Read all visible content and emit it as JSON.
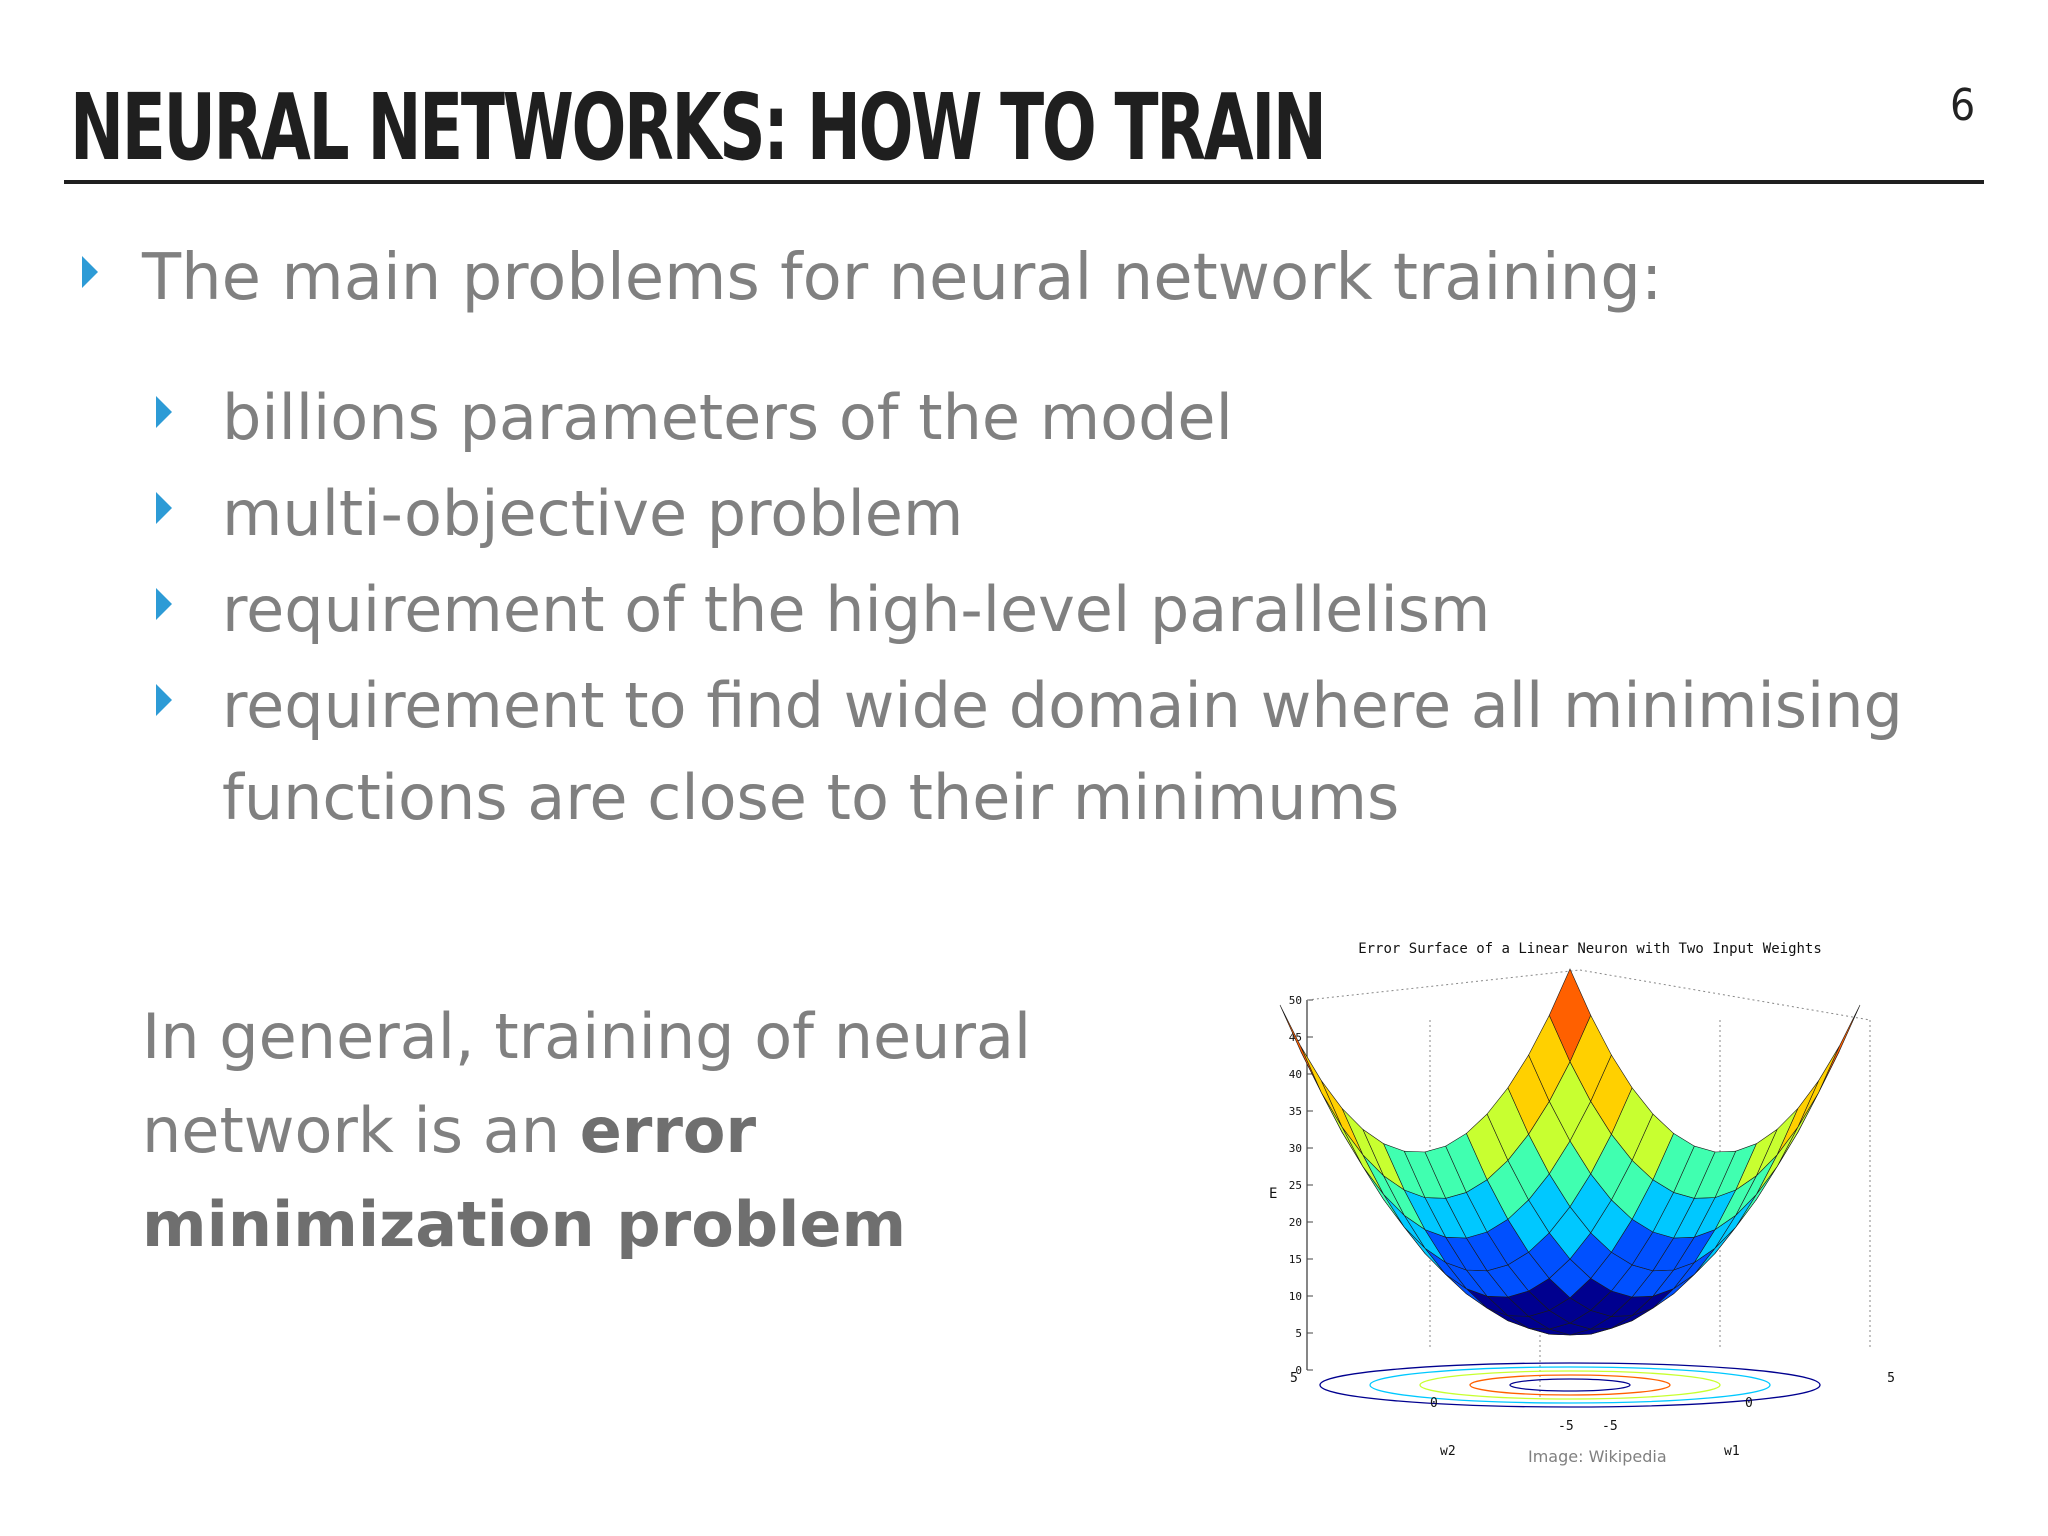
{
  "slide": {
    "title": "NEURAL NETWORKS: HOW TO TRAIN",
    "page_number": "6"
  },
  "bullets": {
    "main": "The main problems for neural network training:",
    "sub": [
      "billions parameters of the model",
      "multi-objective problem",
      "requirement of the high-level parallelism",
      "requirement to find wide domain where all minimising functions are close to their minimums"
    ]
  },
  "summary": {
    "prefix": "In general, training of neural network is an ",
    "bold": "error minimization problem"
  },
  "figure": {
    "title": "Error Surface of a Linear Neuron with Two Input Weights",
    "z_label": "E",
    "z_ticks": [
      "0",
      "5",
      "10",
      "15",
      "20",
      "25",
      "30",
      "35",
      "40",
      "45",
      "50"
    ],
    "w2_label": "w2",
    "w1_label": "w1",
    "w2_ticks": [
      "5",
      "0",
      "-5"
    ],
    "w1_ticks": [
      "-5",
      "0",
      "5"
    ],
    "credit": "Image: Wikipedia",
    "colors": [
      "#00008f",
      "#0050ff",
      "#00c8ff",
      "#40ffb0",
      "#c8ff30",
      "#ffd000",
      "#ff6000",
      "#c80000"
    ]
  }
}
